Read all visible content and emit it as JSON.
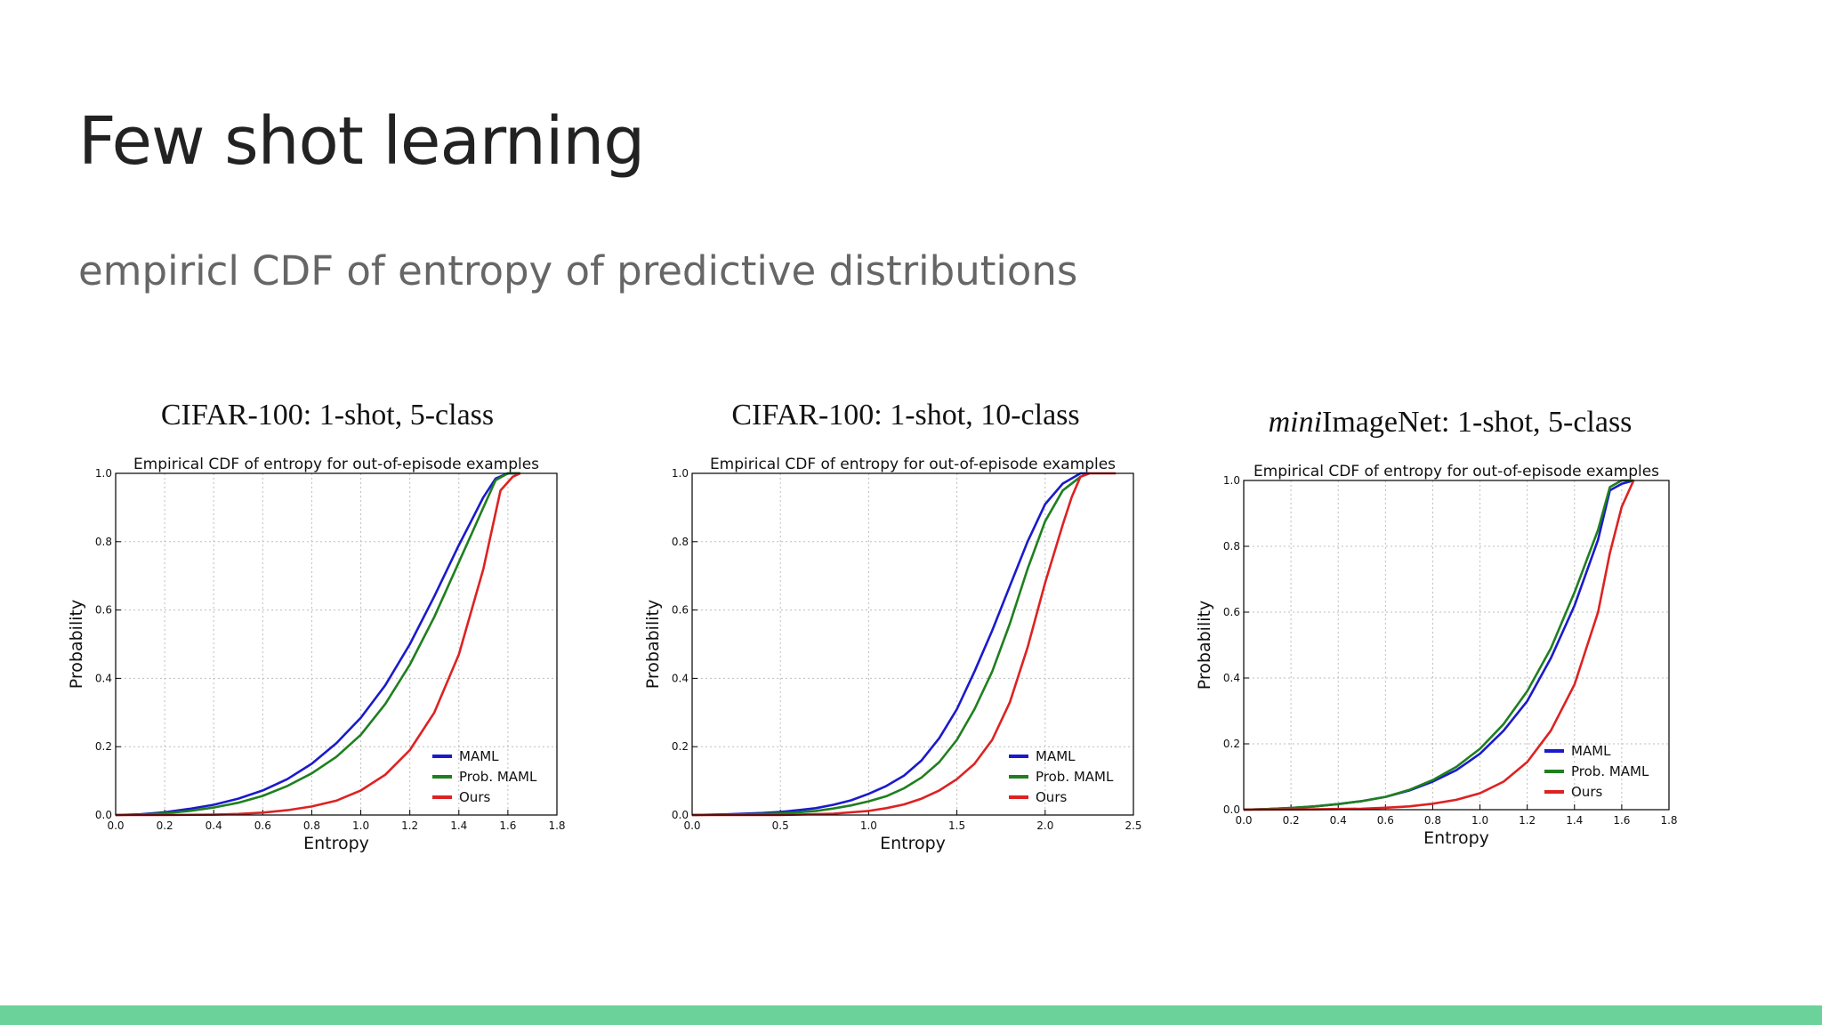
{
  "slide": {
    "title": "Few shot learning",
    "subtitle": "empiricl CDF of entropy of predictive distributions",
    "accent_color": "#6bd39a"
  },
  "panels": [
    {
      "heading_italic": "",
      "heading_rest": "CIFAR-100: 1-shot, 5-class"
    },
    {
      "heading_italic": "",
      "heading_rest": "CIFAR-100: 1-shot, 10-class"
    },
    {
      "heading_italic": "mini",
      "heading_rest": "ImageNet: 1-shot, 5-class"
    }
  ],
  "chart_data": [
    {
      "type": "line",
      "title": "Empirical CDF of entropy for out-of-episode examples",
      "xlabel": "Entropy",
      "ylabel": "Probability",
      "xlim": [
        0,
        1.8
      ],
      "ylim": [
        0,
        1.0
      ],
      "xticks": [
        "0.0",
        "0.2",
        "0.4",
        "0.6",
        "0.8",
        "1.0",
        "1.2",
        "1.4",
        "1.6",
        "1.8"
      ],
      "yticks": [
        "0.0",
        "0.2",
        "0.4",
        "0.6",
        "0.8",
        "1.0"
      ],
      "grid": true,
      "legend": "lower-right",
      "series": [
        {
          "name": "MAML",
          "color": "#1a1acc",
          "x": [
            0,
            0.1,
            0.2,
            0.3,
            0.4,
            0.5,
            0.6,
            0.7,
            0.8,
            0.9,
            1.0,
            1.1,
            1.2,
            1.3,
            1.4,
            1.45,
            1.5,
            1.55,
            1.6,
            1.65
          ],
          "y": [
            0,
            0.002,
            0.008,
            0.018,
            0.03,
            0.048,
            0.072,
            0.105,
            0.15,
            0.21,
            0.285,
            0.38,
            0.5,
            0.64,
            0.79,
            0.86,
            0.93,
            0.985,
            1.0,
            1.0
          ]
        },
        {
          "name": "Prob. MAML",
          "color": "#1f7f1f",
          "x": [
            0,
            0.1,
            0.2,
            0.3,
            0.4,
            0.5,
            0.6,
            0.7,
            0.8,
            0.9,
            1.0,
            1.1,
            1.2,
            1.3,
            1.4,
            1.45,
            1.5,
            1.55,
            1.6,
            1.65
          ],
          "y": [
            0,
            0.001,
            0.005,
            0.012,
            0.022,
            0.036,
            0.056,
            0.085,
            0.122,
            0.17,
            0.235,
            0.325,
            0.44,
            0.58,
            0.74,
            0.82,
            0.9,
            0.98,
            1.0,
            1.0
          ]
        },
        {
          "name": "Ours",
          "color": "#dd2222",
          "x": [
            0,
            0.2,
            0.4,
            0.5,
            0.6,
            0.7,
            0.8,
            0.9,
            1.0,
            1.1,
            1.2,
            1.3,
            1.4,
            1.5,
            1.57,
            1.62,
            1.65
          ],
          "y": [
            0,
            0,
            0.001,
            0.003,
            0.007,
            0.014,
            0.025,
            0.042,
            0.072,
            0.118,
            0.19,
            0.3,
            0.47,
            0.72,
            0.95,
            0.99,
            1.0
          ]
        }
      ]
    },
    {
      "type": "line",
      "title": "Empirical CDF of entropy for out-of-episode examples",
      "xlabel": "Entropy",
      "ylabel": "Probability",
      "xlim": [
        0,
        2.5
      ],
      "ylim": [
        0,
        1.0
      ],
      "xticks": [
        "0.0",
        "0.5",
        "1.0",
        "1.5",
        "2.0",
        "2.5"
      ],
      "yticks": [
        "0.0",
        "0.2",
        "0.4",
        "0.6",
        "0.8",
        "1.0"
      ],
      "grid": true,
      "legend": "lower-right",
      "series": [
        {
          "name": "MAML",
          "color": "#1a1acc",
          "x": [
            0,
            0.2,
            0.4,
            0.5,
            0.6,
            0.7,
            0.8,
            0.9,
            1.0,
            1.1,
            1.2,
            1.3,
            1.4,
            1.5,
            1.6,
            1.7,
            1.8,
            1.9,
            2.0,
            2.1,
            2.2,
            2.25
          ],
          "y": [
            0,
            0.002,
            0.006,
            0.009,
            0.014,
            0.02,
            0.03,
            0.043,
            0.062,
            0.085,
            0.115,
            0.16,
            0.225,
            0.31,
            0.42,
            0.54,
            0.67,
            0.8,
            0.91,
            0.97,
            1.0,
            1.0
          ]
        },
        {
          "name": "Prob. MAML",
          "color": "#1f7f1f",
          "x": [
            0,
            0.2,
            0.4,
            0.5,
            0.6,
            0.7,
            0.8,
            0.9,
            1.0,
            1.1,
            1.2,
            1.3,
            1.4,
            1.5,
            1.6,
            1.7,
            1.8,
            1.9,
            2.0,
            2.1,
            2.2,
            2.25
          ],
          "y": [
            0,
            0.001,
            0.003,
            0.005,
            0.008,
            0.012,
            0.019,
            0.028,
            0.04,
            0.055,
            0.078,
            0.11,
            0.155,
            0.22,
            0.31,
            0.42,
            0.56,
            0.72,
            0.86,
            0.95,
            0.99,
            1.0
          ]
        },
        {
          "name": "Ours",
          "color": "#dd2222",
          "x": [
            0,
            0.5,
            0.8,
            1.0,
            1.1,
            1.2,
            1.3,
            1.4,
            1.5,
            1.6,
            1.7,
            1.8,
            1.9,
            2.0,
            2.1,
            2.15,
            2.2,
            2.25,
            2.3,
            2.4
          ],
          "y": [
            0,
            0,
            0.004,
            0.012,
            0.02,
            0.031,
            0.048,
            0.072,
            0.105,
            0.15,
            0.22,
            0.33,
            0.49,
            0.68,
            0.85,
            0.93,
            0.99,
            1.0,
            1.0,
            1.0
          ]
        }
      ]
    },
    {
      "type": "line",
      "title": "Empirical CDF of entropy for out-of-episode examples",
      "xlabel": "Entropy",
      "ylabel": "Probability",
      "xlim": [
        0,
        1.8
      ],
      "ylim": [
        0,
        1.0
      ],
      "xticks": [
        "0.0",
        "0.2",
        "0.4",
        "0.6",
        "0.8",
        "1.0",
        "1.2",
        "1.4",
        "1.6",
        "1.8"
      ],
      "yticks": [
        "0.0",
        "0.2",
        "0.4",
        "0.6",
        "0.8",
        "1.0"
      ],
      "grid": true,
      "legend": "lower-right",
      "series": [
        {
          "name": "MAML",
          "color": "#1a1acc",
          "x": [
            0,
            0.1,
            0.2,
            0.3,
            0.4,
            0.5,
            0.6,
            0.7,
            0.8,
            0.9,
            1.0,
            1.1,
            1.2,
            1.3,
            1.4,
            1.5,
            1.55,
            1.6,
            1.65
          ],
          "y": [
            0,
            0.002,
            0.005,
            0.01,
            0.017,
            0.026,
            0.039,
            0.058,
            0.085,
            0.12,
            0.17,
            0.24,
            0.33,
            0.46,
            0.62,
            0.82,
            0.97,
            0.99,
            1.0
          ]
        },
        {
          "name": "Prob. MAML",
          "color": "#1f7f1f",
          "x": [
            0,
            0.1,
            0.2,
            0.3,
            0.4,
            0.5,
            0.6,
            0.7,
            0.8,
            0.9,
            1.0,
            1.1,
            1.2,
            1.3,
            1.4,
            1.5,
            1.55,
            1.6,
            1.65
          ],
          "y": [
            0,
            0.002,
            0.005,
            0.01,
            0.017,
            0.026,
            0.039,
            0.06,
            0.09,
            0.13,
            0.185,
            0.26,
            0.36,
            0.49,
            0.66,
            0.85,
            0.98,
            1.0,
            1.0
          ]
        },
        {
          "name": "Ours",
          "color": "#dd2222",
          "x": [
            0,
            0.3,
            0.5,
            0.6,
            0.7,
            0.8,
            0.9,
            1.0,
            1.1,
            1.2,
            1.3,
            1.4,
            1.5,
            1.55,
            1.6,
            1.65
          ],
          "y": [
            0,
            0.001,
            0.003,
            0.006,
            0.01,
            0.018,
            0.03,
            0.05,
            0.085,
            0.145,
            0.24,
            0.38,
            0.6,
            0.78,
            0.92,
            1.0
          ]
        }
      ]
    }
  ]
}
